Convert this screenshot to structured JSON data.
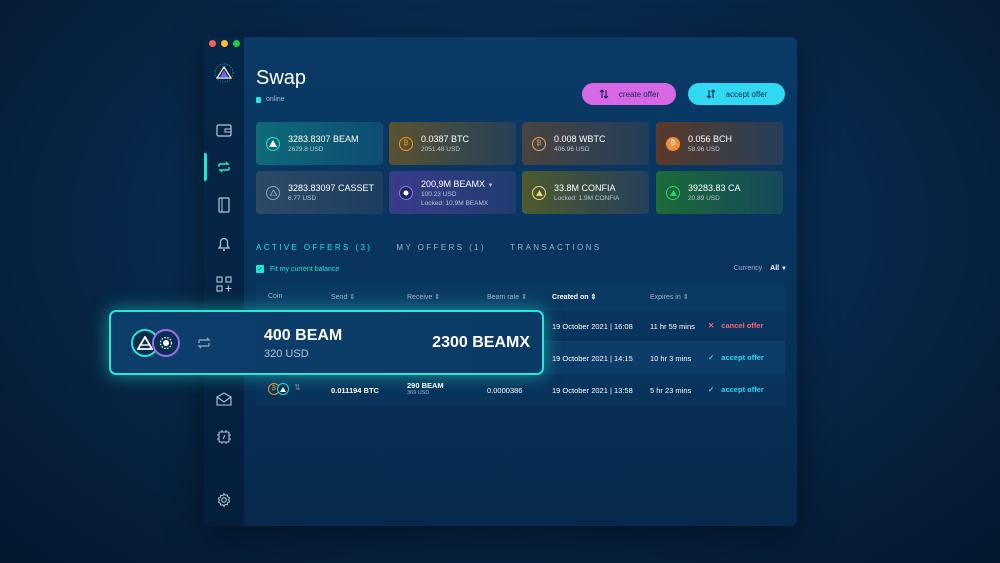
{
  "page": {
    "title": "Swap",
    "status": "online"
  },
  "buttons": {
    "create_offer": "create offer",
    "accept_offer": "accept offer"
  },
  "cards": [
    {
      "amount": "3283.8307 BEAM",
      "sub": "2629.8 USD",
      "icon": "beam-icon",
      "color": "#1ee8d1"
    },
    {
      "amount": "0.0387 BTC",
      "sub": "2051.48 USD",
      "icon": "bitcoin-icon",
      "color": "#f7931a"
    },
    {
      "amount": "0.008 WBTC",
      "sub": "406.96 USD",
      "icon": "wbtc-icon",
      "color": "#e8a060"
    },
    {
      "amount": "0.056 BCH",
      "sub": "58.96 USD",
      "icon": "bch-icon",
      "color": "#f28b3a"
    },
    {
      "amount": "3283.83097 CASSET",
      "sub": "6.77 USD",
      "icon": "casset-icon",
      "color": "#8aa0b8"
    },
    {
      "amount": "200,9M BEAMX",
      "sub": "100.23 USD",
      "sub2": "Locked: 10,9M BEAMX",
      "icon": "beamx-icon",
      "color": "#9a6ef3"
    },
    {
      "amount": "33.8M CONFIA",
      "sub": "Locked: 1.9M CONFIA",
      "icon": "confia-icon",
      "color": "#f2d36b"
    },
    {
      "amount": "39283.83 CA",
      "sub": "20.89 USD",
      "icon": "ca-icon",
      "color": "#2bd46b"
    }
  ],
  "tabs": [
    "ACTIVE OFFERS (3)",
    "MY OFFERS (1)",
    "TRANSACTIONS"
  ],
  "filter": {
    "fit_balance": "Fit my current balance",
    "currency_label": "Currency",
    "currency_value": "All"
  },
  "table": {
    "headers": {
      "coin": "Coin",
      "send": "Send",
      "receive": "Receive",
      "rate": "Beam rate",
      "created": "Created on",
      "expires": "Expires in"
    },
    "rows": [
      {
        "created": "19 October 2021 | 16:08",
        "expires": "11 hr 59 mins",
        "action": "cancel offer"
      },
      {
        "created": "19 October 2021 | 14:15",
        "expires": "10 hr 3 mins",
        "action": "accept offer"
      },
      {
        "send": "0.011194 BTC",
        "receive": "290 BEAM",
        "receive_usd": "369 USD",
        "rate": "0.0000386",
        "created": "19 October 2021 | 13:58",
        "expires": "5 hr 23 mins",
        "action": "accept offer"
      }
    ]
  },
  "popout": {
    "send_amount": "400 BEAM",
    "send_usd": "320 USD",
    "receive_amount": "2300 BEAMX"
  },
  "colors": {
    "accent": "#1ee8d1",
    "create": "#d867e6",
    "accept": "#31d8f2",
    "cancel": "#f1677d"
  }
}
